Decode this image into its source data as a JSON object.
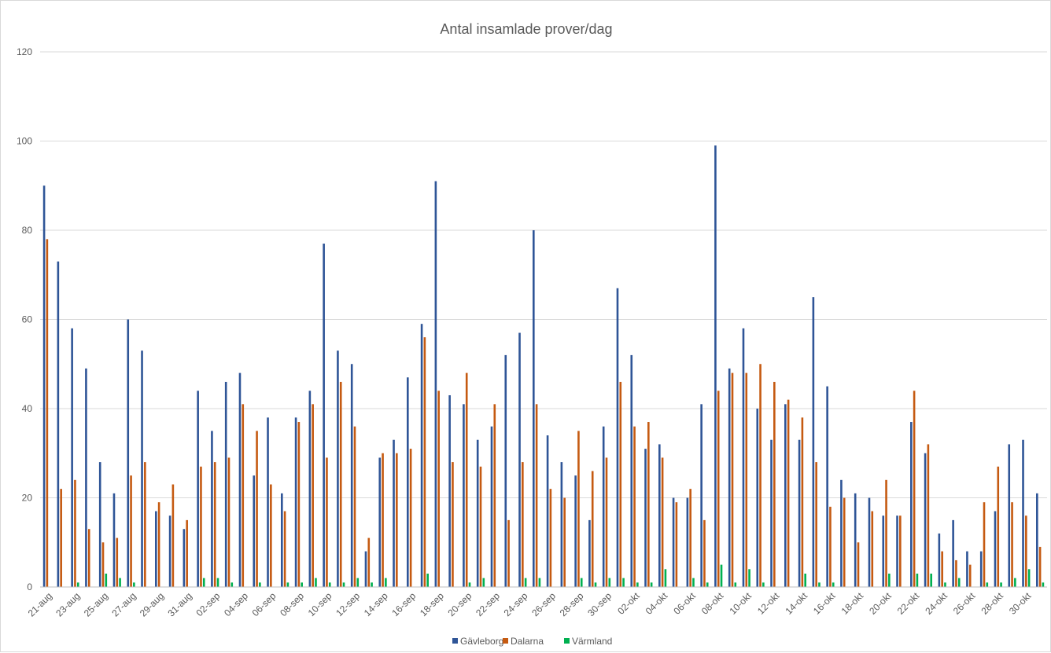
{
  "chart_data": {
    "type": "bar",
    "title": "Antal insamlade prover/dag",
    "xlabel": "",
    "ylabel": "",
    "ylim": [
      0,
      120
    ],
    "yticks": [
      0,
      20,
      40,
      60,
      80,
      100,
      120
    ],
    "grid": true,
    "legend_position": "bottom",
    "categories": [
      "21-aug",
      "22-aug",
      "23-aug",
      "24-aug",
      "25-aug",
      "26-aug",
      "27-aug",
      "28-aug",
      "29-aug",
      "30-aug",
      "31-aug",
      "01-sep",
      "02-sep",
      "03-sep",
      "04-sep",
      "05-sep",
      "06-sep",
      "07-sep",
      "08-sep",
      "09-sep",
      "10-sep",
      "11-sep",
      "12-sep",
      "13-sep",
      "14-sep",
      "15-sep",
      "16-sep",
      "17-sep",
      "18-sep",
      "19-sep",
      "20-sep",
      "21-sep",
      "22-sep",
      "23-sep",
      "24-sep",
      "25-sep",
      "26-sep",
      "27-sep",
      "28-sep",
      "29-sep",
      "30-sep",
      "01-okt",
      "02-okt",
      "03-okt",
      "04-okt",
      "05-okt",
      "06-okt",
      "07-okt",
      "08-okt",
      "09-okt",
      "10-okt",
      "11-okt",
      "12-okt",
      "13-okt",
      "14-okt",
      "15-okt",
      "16-okt",
      "17-okt",
      "18-okt",
      "19-okt",
      "20-okt",
      "21-okt",
      "22-okt",
      "23-okt",
      "24-okt",
      "25-okt",
      "26-okt",
      "27-okt",
      "28-okt",
      "29-okt",
      "30-okt",
      "31-okt"
    ],
    "xtick_labels": [
      "21-aug",
      "23-aug",
      "25-aug",
      "27-aug",
      "29-aug",
      "31-aug",
      "02-sep",
      "04-sep",
      "06-sep",
      "08-sep",
      "10-sep",
      "12-sep",
      "14-sep",
      "16-sep",
      "18-sep",
      "20-sep",
      "22-sep",
      "24-sep",
      "26-sep",
      "28-sep",
      "30-sep",
      "02-okt",
      "04-okt",
      "06-okt",
      "08-okt",
      "10-okt",
      "12-okt",
      "14-okt",
      "16-okt",
      "18-okt",
      "20-okt",
      "22-okt",
      "24-okt",
      "26-okt",
      "28-okt",
      "30-okt"
    ],
    "series": [
      {
        "name": "Gävleborg",
        "color": "#2f5597",
        "values": [
          90,
          73,
          58,
          49,
          28,
          21,
          60,
          53,
          17,
          16,
          13,
          44,
          35,
          46,
          48,
          25,
          38,
          21,
          38,
          44,
          77,
          53,
          50,
          8,
          29,
          33,
          47,
          59,
          91,
          43,
          41,
          33,
          36,
          52,
          57,
          80,
          34,
          28,
          25,
          15,
          36,
          67,
          52,
          31,
          32,
          20,
          20,
          41,
          99,
          49,
          58,
          40,
          33,
          41,
          33,
          65,
          45,
          24,
          21,
          20,
          16,
          16,
          37,
          30,
          12,
          15,
          8,
          8,
          17,
          32,
          33,
          21
        ]
      },
      {
        "name": "Dalarna",
        "color": "#c55a11",
        "values": [
          78,
          22,
          24,
          13,
          10,
          11,
          25,
          28,
          19,
          23,
          15,
          27,
          28,
          29,
          41,
          35,
          23,
          17,
          37,
          41,
          29,
          46,
          36,
          11,
          30,
          30,
          31,
          56,
          44,
          28,
          48,
          27,
          41,
          15,
          28,
          41,
          22,
          20,
          35,
          26,
          29,
          46,
          36,
          37,
          29,
          19,
          22,
          15,
          44,
          48,
          48,
          50,
          46,
          42,
          38,
          28,
          18,
          20,
          10,
          17,
          24,
          16,
          44,
          32,
          8,
          6,
          5,
          19,
          27,
          19,
          16,
          9
        ]
      },
      {
        "name": "Värmland",
        "color": "#00b050",
        "values": [
          0,
          0,
          1,
          0,
          3,
          2,
          1,
          0,
          0,
          0,
          0,
          2,
          2,
          1,
          0,
          1,
          0,
          1,
          1,
          2,
          1,
          1,
          2,
          1,
          2,
          0,
          0,
          3,
          0,
          0,
          1,
          2,
          0,
          0,
          2,
          2,
          0,
          0,
          2,
          1,
          2,
          2,
          1,
          1,
          4,
          0,
          2,
          1,
          5,
          1,
          4,
          1,
          0,
          0,
          3,
          1,
          1,
          0,
          0,
          0,
          3,
          0,
          3,
          3,
          1,
          2,
          0,
          1,
          1,
          2,
          4,
          1
        ]
      }
    ]
  }
}
